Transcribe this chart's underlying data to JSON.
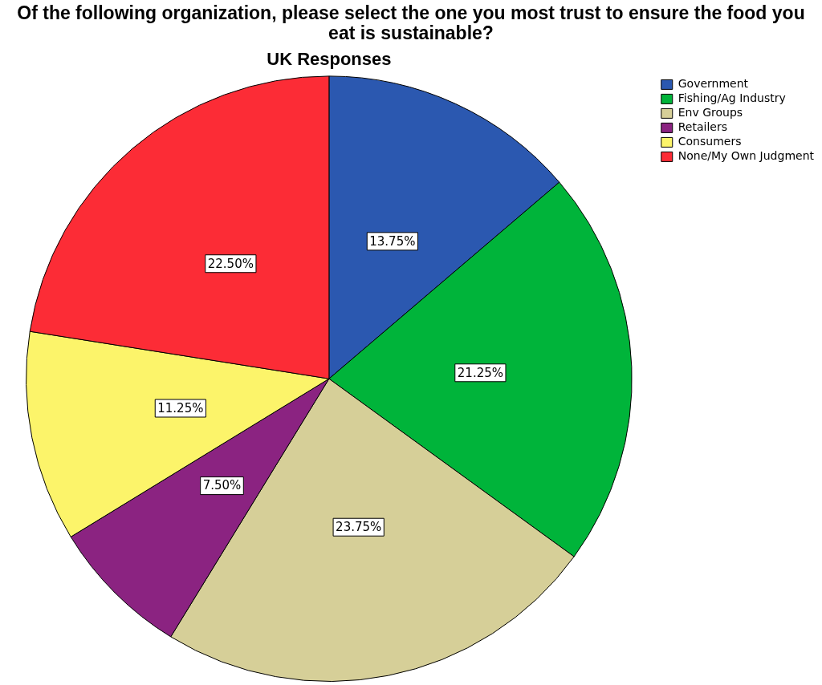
{
  "chart_data": {
    "type": "pie",
    "title": "Of the following organization, please select the one you most trust to ensure the food you eat is sustainable?",
    "subtitle": "UK Responses",
    "categories": [
      "Government",
      "Fishing/Ag Industry",
      "Env Groups",
      "Retailers",
      "Consumers",
      "None/My Own Judgment"
    ],
    "values": [
      13.75,
      21.25,
      23.75,
      7.5,
      11.25,
      22.5
    ],
    "colors": [
      "#2b58b0",
      "#00b43a",
      "#d6cf98",
      "#8b2381",
      "#fcf46a",
      "#fc2c36"
    ],
    "value_labels": [
      "13.75%",
      "21.25%",
      "23.75%",
      "7.50%",
      "11.25%",
      "22.50%"
    ],
    "legend": "top right"
  }
}
